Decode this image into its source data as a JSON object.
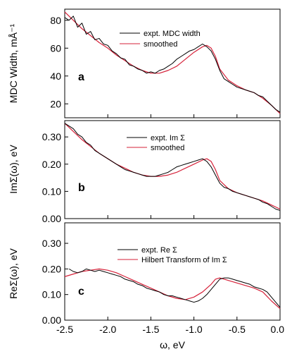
{
  "figure": {
    "x_label": "ω, eV",
    "x_ticks": [
      "-2.5",
      "-2.0",
      "-1.5",
      "-1.0",
      "-0.5",
      "0.0"
    ]
  },
  "chart_data": [
    {
      "type": "line",
      "panel": "a",
      "ylabel": "MDC Width, mÅ⁻¹",
      "xlim": [
        -2.5,
        0.0
      ],
      "ylim": [
        10,
        88
      ],
      "y_ticks": [
        20,
        40,
        60,
        80
      ],
      "y_tick_labels": [
        "20",
        "40",
        "60",
        "80"
      ],
      "legend": [
        "expt. MDC width",
        "smoothed"
      ],
      "series": [
        {
          "name": "expt. MDC width",
          "color": "#000000",
          "x": [
            -2.5,
            -2.45,
            -2.4,
            -2.35,
            -2.3,
            -2.25,
            -2.2,
            -2.15,
            -2.1,
            -2.05,
            -2.0,
            -1.95,
            -1.9,
            -1.85,
            -1.8,
            -1.75,
            -1.7,
            -1.65,
            -1.6,
            -1.55,
            -1.5,
            -1.45,
            -1.4,
            -1.35,
            -1.3,
            -1.25,
            -1.2,
            -1.15,
            -1.1,
            -1.05,
            -1.0,
            -0.95,
            -0.9,
            -0.85,
            -0.8,
            -0.75,
            -0.7,
            -0.65,
            -0.6,
            -0.55,
            -0.5,
            -0.45,
            -0.4,
            -0.35,
            -0.3,
            -0.25,
            -0.2,
            -0.15,
            -0.1,
            -0.05,
            0.0
          ],
          "y": [
            82,
            80,
            83,
            75,
            78,
            70,
            72,
            66,
            67,
            63,
            62,
            58,
            56,
            53,
            52,
            48,
            47,
            45,
            44,
            42,
            43,
            42,
            44,
            45,
            47,
            49,
            52,
            54,
            56,
            58,
            59,
            61,
            63,
            61,
            58,
            52,
            44,
            38,
            36,
            34,
            32,
            31,
            30,
            29,
            28,
            26,
            25,
            22,
            19,
            16,
            14
          ]
        },
        {
          "name": "smoothed",
          "color": "#d6223a",
          "x": [
            -2.5,
            -2.4,
            -2.3,
            -2.2,
            -2.1,
            -2.0,
            -1.9,
            -1.8,
            -1.7,
            -1.6,
            -1.5,
            -1.4,
            -1.3,
            -1.2,
            -1.1,
            -1.0,
            -0.9,
            -0.85,
            -0.8,
            -0.75,
            -0.7,
            -0.6,
            -0.5,
            -0.4,
            -0.3,
            -0.2,
            -0.1,
            0.0
          ],
          "y": [
            86,
            80,
            74,
            69,
            64,
            60,
            55,
            51,
            47,
            44,
            42,
            42,
            44,
            47,
            52,
            57,
            61,
            62,
            60,
            54,
            45,
            37,
            33,
            30,
            28,
            24,
            19,
            13
          ]
        }
      ]
    },
    {
      "type": "line",
      "panel": "b",
      "ylabel": "ImΣ(ω), eV",
      "xlim": [
        -2.5,
        0.0
      ],
      "ylim": [
        0.0,
        0.36
      ],
      "y_ticks": [
        0.0,
        0.1,
        0.2,
        0.3
      ],
      "y_tick_labels": [
        "0.00",
        "0.10",
        "0.20",
        "0.30"
      ],
      "legend": [
        "expt. Im Σ",
        "smoothed"
      ],
      "series": [
        {
          "name": "expt. Im Σ",
          "color": "#000000",
          "x": [
            -2.5,
            -2.45,
            -2.4,
            -2.35,
            -2.3,
            -2.25,
            -2.2,
            -2.15,
            -2.1,
            -2.05,
            -2.0,
            -1.95,
            -1.9,
            -1.85,
            -1.8,
            -1.75,
            -1.7,
            -1.65,
            -1.6,
            -1.55,
            -1.5,
            -1.45,
            -1.4,
            -1.35,
            -1.3,
            -1.25,
            -1.2,
            -1.15,
            -1.1,
            -1.05,
            -1.0,
            -0.95,
            -0.9,
            -0.85,
            -0.8,
            -0.75,
            -0.7,
            -0.65,
            -0.6,
            -0.55,
            -0.5,
            -0.45,
            -0.4,
            -0.35,
            -0.3,
            -0.25,
            -0.2,
            -0.15,
            -0.1,
            -0.05,
            0.0
          ],
          "y": [
            0.35,
            0.34,
            0.33,
            0.31,
            0.3,
            0.28,
            0.27,
            0.25,
            0.24,
            0.23,
            0.22,
            0.21,
            0.2,
            0.19,
            0.18,
            0.175,
            0.17,
            0.165,
            0.16,
            0.155,
            0.155,
            0.155,
            0.16,
            0.165,
            0.17,
            0.18,
            0.19,
            0.195,
            0.2,
            0.205,
            0.21,
            0.215,
            0.22,
            0.21,
            0.19,
            0.16,
            0.13,
            0.115,
            0.11,
            0.1,
            0.095,
            0.09,
            0.085,
            0.08,
            0.075,
            0.07,
            0.06,
            0.055,
            0.045,
            0.035,
            0.03
          ]
        },
        {
          "name": "smoothed",
          "color": "#d6223a",
          "x": [
            -2.5,
            -2.4,
            -2.3,
            -2.2,
            -2.1,
            -2.0,
            -1.9,
            -1.8,
            -1.7,
            -1.6,
            -1.5,
            -1.4,
            -1.3,
            -1.2,
            -1.1,
            -1.0,
            -0.9,
            -0.85,
            -0.8,
            -0.75,
            -0.7,
            -0.6,
            -0.5,
            -0.4,
            -0.3,
            -0.2,
            -0.1,
            0.0
          ],
          "y": [
            0.35,
            0.32,
            0.29,
            0.265,
            0.24,
            0.22,
            0.2,
            0.185,
            0.17,
            0.16,
            0.155,
            0.155,
            0.16,
            0.17,
            0.185,
            0.2,
            0.215,
            0.22,
            0.21,
            0.18,
            0.14,
            0.11,
            0.095,
            0.085,
            0.075,
            0.065,
            0.05,
            0.035
          ]
        }
      ]
    },
    {
      "type": "line",
      "panel": "c",
      "ylabel": "ReΣ(ω), eV",
      "xlim": [
        -2.5,
        0.0
      ],
      "ylim": [
        0.0,
        0.38
      ],
      "y_ticks": [
        0.0,
        0.1,
        0.2,
        0.3
      ],
      "y_tick_labels": [
        "0.00",
        "0.10",
        "0.20",
        "0.30"
      ],
      "legend": [
        "expt. Re Σ",
        "Hilbert Transform of Im Σ"
      ],
      "series": [
        {
          "name": "expt. Re Σ",
          "color": "#000000",
          "x": [
            -2.45,
            -2.4,
            -2.35,
            -2.3,
            -2.25,
            -2.2,
            -2.15,
            -2.1,
            -2.05,
            -2.0,
            -1.95,
            -1.9,
            -1.85,
            -1.8,
            -1.75,
            -1.7,
            -1.65,
            -1.6,
            -1.55,
            -1.5,
            -1.45,
            -1.4,
            -1.35,
            -1.3,
            -1.25,
            -1.2,
            -1.15,
            -1.1,
            -1.05,
            -1.0,
            -0.95,
            -0.9,
            -0.85,
            -0.8,
            -0.75,
            -0.7,
            -0.65,
            -0.6,
            -0.55,
            -0.5,
            -0.45,
            -0.4,
            -0.35,
            -0.3,
            -0.25,
            -0.2,
            -0.15,
            -0.1,
            -0.05,
            0.0
          ],
          "y": [
            0.2,
            0.19,
            0.185,
            0.19,
            0.2,
            0.195,
            0.19,
            0.195,
            0.19,
            0.185,
            0.18,
            0.175,
            0.17,
            0.16,
            0.155,
            0.15,
            0.14,
            0.135,
            0.125,
            0.12,
            0.115,
            0.11,
            0.1,
            0.095,
            0.095,
            0.09,
            0.085,
            0.08,
            0.075,
            0.07,
            0.075,
            0.085,
            0.1,
            0.12,
            0.14,
            0.16,
            0.165,
            0.165,
            0.16,
            0.155,
            0.15,
            0.145,
            0.14,
            0.13,
            0.125,
            0.12,
            0.11,
            0.09,
            0.07,
            0.05
          ]
        },
        {
          "name": "Hilbert Transform of Im Σ",
          "color": "#d6223a",
          "x": [
            -2.5,
            -2.4,
            -2.3,
            -2.2,
            -2.1,
            -2.0,
            -1.9,
            -1.8,
            -1.7,
            -1.6,
            -1.5,
            -1.4,
            -1.3,
            -1.2,
            -1.1,
            -1.0,
            -0.9,
            -0.8,
            -0.75,
            -0.7,
            -0.6,
            -0.5,
            -0.4,
            -0.3,
            -0.2,
            -0.1,
            0.0
          ],
          "y": [
            0.17,
            0.18,
            0.19,
            0.195,
            0.2,
            0.195,
            0.185,
            0.17,
            0.155,
            0.14,
            0.125,
            0.11,
            0.095,
            0.085,
            0.08,
            0.09,
            0.11,
            0.14,
            0.16,
            0.165,
            0.155,
            0.145,
            0.135,
            0.125,
            0.11,
            0.075,
            0.045
          ]
        }
      ]
    }
  ]
}
